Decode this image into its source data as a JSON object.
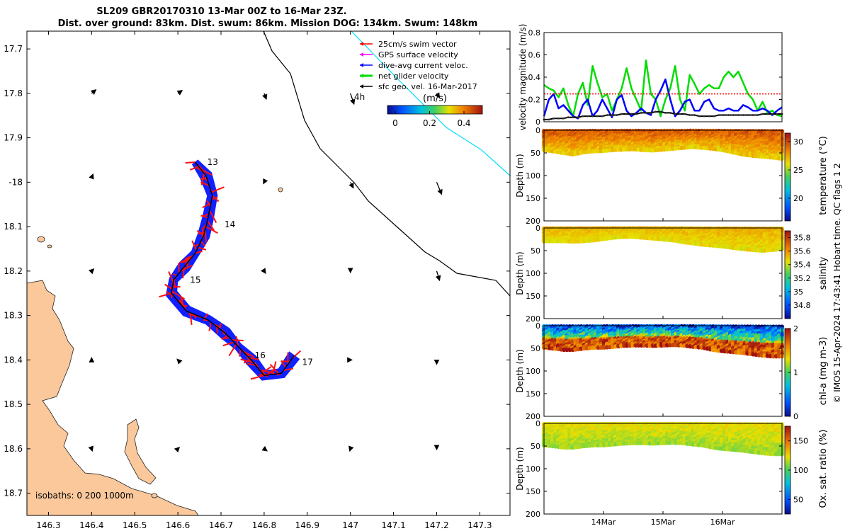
{
  "figure": {
    "title_line1": "SL209 GBR20170310 13-Mar 00Z to 16-Mar 23Z.",
    "title_line2": "Dist. over ground: 83km. Dist. swum: 86km. Mission DOG: 134km. Swum: 148km",
    "credit": "© IMOS 15-Apr-2024 17:43:41 Hobart time. QC flags 1  2"
  },
  "map": {
    "lat_ticks": [
      "17.7",
      "17.8",
      "17.9",
      "-18",
      "18.1",
      "18.2",
      "18.3",
      "18.4",
      "18.5",
      "18.6",
      "18.7"
    ],
    "lon_ticks": [
      "146.3",
      "146.4",
      "146.5",
      "146.6",
      "146.7",
      "146.8",
      "146.9",
      "147",
      "147.1",
      "147.2",
      "147.3"
    ],
    "lat_range": [
      -18.75,
      -17.66
    ],
    "lon_range": [
      146.25,
      147.37
    ],
    "legend": [
      {
        "label": "25cm/s swim vector",
        "color": "#ff0000"
      },
      {
        "label": "GPS surface velocity",
        "color": "#ff00ff"
      },
      {
        "label": "dive-avg current veloc.",
        "color": "#0000ff"
      },
      {
        "label": "net glider velocity",
        "color": "#00dd00"
      },
      {
        "label": "sfc geo. vel. 16-Mar-2017",
        "color": "#000000"
      }
    ],
    "time_label": "4h",
    "colorbar_label": "(m/s)",
    "colorbar_ticks": [
      "0",
      "0.2",
      "0.4"
    ],
    "day_labels": [
      "13",
      "14",
      "15",
      "16",
      "17"
    ],
    "isobaths_text": "isobaths: 0   200  1000m",
    "land_color": "#fac89b",
    "track": [
      {
        "lon": 146.64,
        "lat": -17.955
      },
      {
        "lon": 146.665,
        "lat": -17.985
      },
      {
        "lon": 146.68,
        "lat": -18.03
      },
      {
        "lon": 146.67,
        "lat": -18.08
      },
      {
        "lon": 146.66,
        "lat": -18.12
      },
      {
        "lon": 146.64,
        "lat": -18.16
      },
      {
        "lon": 146.615,
        "lat": -18.19
      },
      {
        "lon": 146.59,
        "lat": -18.22
      },
      {
        "lon": 146.585,
        "lat": -18.25
      },
      {
        "lon": 146.62,
        "lat": -18.29
      },
      {
        "lon": 146.67,
        "lat": -18.31
      },
      {
        "lon": 146.71,
        "lat": -18.34
      },
      {
        "lon": 146.74,
        "lat": -18.37
      },
      {
        "lon": 146.77,
        "lat": -18.4
      },
      {
        "lon": 146.8,
        "lat": -18.435
      },
      {
        "lon": 146.84,
        "lat": -18.43
      },
      {
        "lon": 146.87,
        "lat": -18.39
      }
    ],
    "day_points": [
      {
        "label": "13",
        "lon": 146.66,
        "lat": -17.955
      },
      {
        "label": "14",
        "lon": 146.7,
        "lat": -18.095
      },
      {
        "label": "15",
        "lon": 146.62,
        "lat": -18.22
      },
      {
        "label": "16",
        "lon": 146.77,
        "lat": -18.39
      },
      {
        "label": "17",
        "lon": 146.88,
        "lat": -18.405
      }
    ],
    "sfc_vectors": [
      {
        "lon": 146.4,
        "lat": -17.8,
        "u": 0.06,
        "v": 0.05
      },
      {
        "lon": 146.6,
        "lat": -17.8,
        "u": 0.06,
        "v": 0.04
      },
      {
        "lon": 146.8,
        "lat": -17.8,
        "u": 0.03,
        "v": -0.08
      },
      {
        "lon": 147.0,
        "lat": -17.8,
        "u": 0.05,
        "v": -0.15
      },
      {
        "lon": 147.2,
        "lat": -17.8,
        "u": 0.04,
        "v": -0.06
      },
      {
        "lon": 146.4,
        "lat": -17.99,
        "u": 0.02,
        "v": 0.05
      },
      {
        "lon": 146.8,
        "lat": -18.0,
        "u": -0.01,
        "v": -0.02
      },
      {
        "lon": 147.0,
        "lat": -18.0,
        "u": 0.04,
        "v": -0.08
      },
      {
        "lon": 147.2,
        "lat": -18.0,
        "u": 0.07,
        "v": -0.17
      },
      {
        "lon": 146.4,
        "lat": -18.2,
        "u": 0.03,
        "v": 0.03
      },
      {
        "lon": 146.8,
        "lat": -18.2,
        "u": 0.02,
        "v": -0.03
      },
      {
        "lon": 147.0,
        "lat": -18.2,
        "u": 0.0,
        "v": -0.02
      },
      {
        "lon": 147.2,
        "lat": -18.2,
        "u": 0.04,
        "v": -0.13
      },
      {
        "lon": 146.4,
        "lat": -18.4,
        "u": 0.0,
        "v": 0.03
      },
      {
        "lon": 146.6,
        "lat": -18.4,
        "u": -0.01,
        "v": 0.01
      },
      {
        "lon": 147.0,
        "lat": -18.4,
        "u": 0.02,
        "v": 0.0
      },
      {
        "lon": 147.2,
        "lat": -18.4,
        "u": 0.0,
        "v": -0.06
      },
      {
        "lon": 146.4,
        "lat": -18.6,
        "u": 0.01,
        "v": -0.03
      },
      {
        "lon": 146.6,
        "lat": -18.6,
        "u": 0.02,
        "v": 0.02
      },
      {
        "lon": 146.8,
        "lat": -18.6,
        "u": 0.04,
        "v": -0.03
      },
      {
        "lon": 147.0,
        "lat": -18.6,
        "u": -0.01,
        "v": -0.03
      },
      {
        "lon": 147.2,
        "lat": -18.6,
        "u": 0.0,
        "v": -0.01
      }
    ]
  },
  "chart_data": [
    {
      "type": "line",
      "title": "",
      "ylabel": "velocity magnitude (m/s)",
      "ylim": [
        0,
        0.8
      ],
      "yticks": [
        "0",
        "0.2",
        "0.4",
        "0.6",
        "0.8"
      ],
      "series": [
        {
          "name": "GPS surface / net speed",
          "color": "#00dd00",
          "values": [
            0.33,
            0.3,
            0.28,
            0.22,
            0.3,
            0.15,
            0.05,
            0.25,
            0.35,
            0.15,
            0.5,
            0.35,
            0.22,
            0.25,
            0.1,
            0.2,
            0.3,
            0.48,
            0.3,
            0.2,
            0.1,
            0.55,
            0.25,
            0.2,
            0.05,
            0.2,
            0.3,
            0.5,
            0.2,
            0.1,
            0.42,
            0.34,
            0.25,
            0.3,
            0.33,
            0.3,
            0.3,
            0.4,
            0.45,
            0.4,
            0.45,
            0.35,
            0.25,
            0.2,
            0.1,
            0.18,
            0.08,
            0.1,
            0.06,
            0.05
          ]
        },
        {
          "name": "dive-avg current",
          "color": "#0000ff",
          "values": [
            0.05,
            0.2,
            0.25,
            0.12,
            0.15,
            0.1,
            0.05,
            0.03,
            0.15,
            0.2,
            0.05,
            0.1,
            0.2,
            0.12,
            0.04,
            0.2,
            0.24,
            0.1,
            0.05,
            0.08,
            0.12,
            0.08,
            0.06,
            0.2,
            0.28,
            0.38,
            0.2,
            0.05,
            0.1,
            0.18,
            0.2,
            0.1,
            0.1,
            0.18,
            0.2,
            0.12,
            0.1,
            0.1,
            0.12,
            0.1,
            0.1,
            0.15,
            0.13,
            0.1,
            0.1,
            0.12,
            0.1,
            0.06,
            0.1,
            0.13
          ]
        },
        {
          "name": "swim 25cm/s",
          "color": "#ff0000",
          "constant": 0.25
        },
        {
          "name": "sfc geo. vel.",
          "color": "#000000",
          "values": [
            0.02,
            0.02,
            0.03,
            0.03,
            0.03,
            0.04,
            0.04,
            0.04,
            0.05,
            0.05,
            0.05,
            0.05,
            0.05,
            0.06,
            0.06,
            0.06,
            0.07,
            0.07,
            0.07,
            0.07,
            0.08,
            0.08,
            0.08,
            0.09,
            0.09,
            0.08,
            0.08,
            0.07,
            0.07,
            0.07,
            0.06,
            0.06,
            0.05,
            0.05,
            0.05,
            0.05,
            0.06,
            0.06,
            0.06,
            0.06,
            0.06,
            0.06,
            0.06,
            0.06,
            0.06,
            0.07,
            0.07,
            0.07,
            0.07,
            0.07
          ]
        }
      ]
    },
    {
      "type": "heatmap",
      "ylabel": "Depth (m)",
      "yticks": [
        "0",
        "50",
        "100",
        "150",
        "200"
      ],
      "ylim": [
        0,
        200
      ],
      "cbar_label": "temperature (°C)",
      "cbar_ticks": [
        "20",
        "25",
        "30"
      ],
      "cbar_range": [
        16,
        31.5
      ],
      "base_value": 29.2,
      "bottom_value": 26.5,
      "top_value": 29.8,
      "noise": 0.8,
      "bottom_depth": [
        45,
        48,
        52,
        55,
        50,
        48,
        47,
        45,
        44,
        43,
        45,
        46,
        44,
        42,
        40,
        38,
        40,
        42,
        45,
        50,
        55,
        58,
        60,
        62,
        65
      ]
    },
    {
      "type": "heatmap",
      "ylabel": "Depth (m)",
      "yticks": [
        "0",
        "50",
        "100",
        "150",
        "200"
      ],
      "ylim": [
        0,
        200
      ],
      "cbar_label": "salinity",
      "cbar_ticks": [
        "34.8",
        "35",
        "35.2",
        "35.4",
        "35.6",
        "35.8"
      ],
      "cbar_range": [
        34.6,
        35.9
      ],
      "base_value": 35.55,
      "bottom_value": 35.45,
      "top_value": 35.55,
      "noise": 0.05,
      "bottom_depth": [
        30,
        30,
        30,
        31,
        30,
        28,
        25,
        22,
        20,
        20,
        22,
        24,
        26,
        28,
        32,
        35,
        38,
        40,
        42,
        45,
        48,
        50,
        52,
        50,
        48
      ]
    },
    {
      "type": "heatmap",
      "ylabel": "Depth (m)",
      "yticks": [
        "0",
        "50",
        "100",
        "150",
        "200"
      ],
      "ylim": [
        0,
        200
      ],
      "cbar_label": "chl-a (mg m-3)",
      "cbar_ticks": [
        "0",
        "1",
        "2"
      ],
      "cbar_range": [
        0,
        2
      ],
      "base_value": 0.9,
      "bottom_value": 1.9,
      "top_value": 0.15,
      "noise": 0.35,
      "bottom_depth": [
        50,
        52,
        55,
        55,
        52,
        50,
        50,
        48,
        46,
        45,
        45,
        46,
        45,
        44,
        45,
        48,
        50,
        55,
        58,
        60,
        62,
        65,
        68,
        70,
        70
      ]
    },
    {
      "type": "heatmap",
      "ylabel": "Depth (m)",
      "yticks": [
        "0",
        "50",
        "100",
        "150",
        "200"
      ],
      "ylim": [
        0,
        200
      ],
      "cbar_label": "Ox. sat. ratio (%)",
      "cbar_ticks": [
        "50",
        "100",
        "150"
      ],
      "cbar_range": [
        25,
        175
      ],
      "base_value": 118,
      "bottom_value": 112,
      "top_value": 125,
      "noise": 6,
      "bottom_depth": [
        50,
        52,
        55,
        55,
        52,
        50,
        50,
        48,
        46,
        45,
        45,
        46,
        45,
        44,
        45,
        48,
        50,
        55,
        58,
        60,
        62,
        65,
        68,
        70,
        70
      ]
    }
  ],
  "time_axis": {
    "labels": [
      "14Mar",
      "15Mar",
      "16Mar"
    ],
    "positions_days": [
      1,
      2,
      3
    ],
    "range_days": [
      0,
      4
    ]
  }
}
